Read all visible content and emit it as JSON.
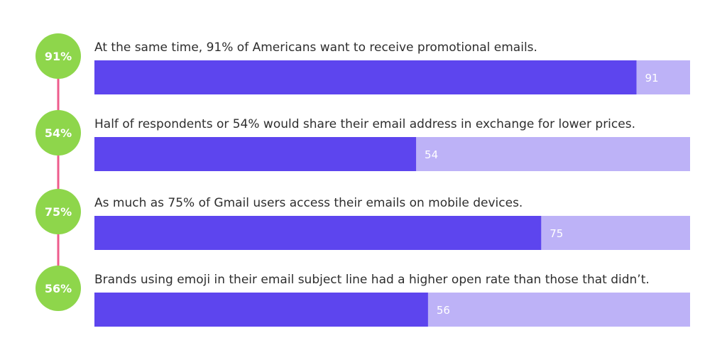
{
  "colors": {
    "bar_fill": "#5d45ee",
    "bar_track": "#bdb2f7",
    "badge": "#8ed64b",
    "connector": "#ee5c8c",
    "text": "#2e2e2e",
    "value_text": "#ffffff"
  },
  "chart_data": {
    "type": "bar",
    "orientation": "horizontal",
    "xlim": [
      0,
      100
    ],
    "grid": false,
    "rows": [
      {
        "badge": "91%",
        "label": "At the same time, 91% of Americans want to receive promotional emails.",
        "value": 91,
        "value_label": "91"
      },
      {
        "badge": "54%",
        "label": "Half of respondents or 54% would share their email address in exchange for lower prices.",
        "value": 54,
        "value_label": "54"
      },
      {
        "badge": "75%",
        "label": "As much as 75% of Gmail users access their emails on mobile devices.",
        "value": 75,
        "value_label": "75"
      },
      {
        "badge": "56%",
        "label": "Brands using emoji in their email subject line had a higher open rate than those that didn’t.",
        "value": 56,
        "value_label": "56"
      }
    ]
  }
}
